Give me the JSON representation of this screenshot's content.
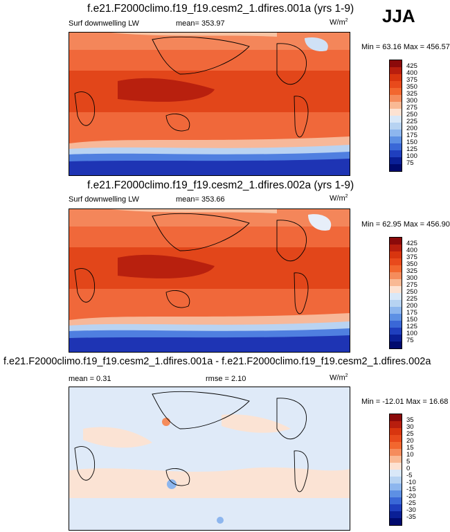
{
  "season": "JJA",
  "panels": [
    {
      "title": "f.e21.F2000climo.f19_f19.cesm2_1.dfires.001a (yrs 1-9)",
      "variable": "Surf downwelling LW",
      "mean_text": "mean= 353.97",
      "units": "W/m",
      "units_sup": "2",
      "minmax": "Min =  63.16 Max = 456.57",
      "levels": [
        "425",
        "400",
        "375",
        "350",
        "325",
        "300",
        "275",
        "250",
        "225",
        "200",
        "175",
        "150",
        "125",
        "100",
        "75"
      ],
      "colors": [
        "#8b0a0a",
        "#b81e0e",
        "#d8350f",
        "#e84a1c",
        "#f2672f",
        "#f58c5c",
        "#f9b994",
        "#fde2d2",
        "#d9e8f8",
        "#b7d3f2",
        "#8db6ee",
        "#5d90e4",
        "#3a68d7",
        "#1f3fbe",
        "#0a1f96",
        "#000a6e"
      ]
    },
    {
      "title": "f.e21.F2000climo.f19_f19.cesm2_1.dfires.002a (yrs 1-9)",
      "variable": "Surf downwelling LW",
      "mean_text": "mean= 353.66",
      "units": "W/m",
      "units_sup": "2",
      "minmax": "Min =  62.95 Max = 456.90",
      "levels": [
        "425",
        "400",
        "375",
        "350",
        "325",
        "300",
        "275",
        "250",
        "225",
        "200",
        "175",
        "150",
        "125",
        "100",
        "75"
      ],
      "colors": [
        "#8b0a0a",
        "#b81e0e",
        "#d8350f",
        "#e84a1c",
        "#f2672f",
        "#f58c5c",
        "#f9b994",
        "#fde2d2",
        "#d9e8f8",
        "#b7d3f2",
        "#8db6ee",
        "#5d90e4",
        "#3a68d7",
        "#1f3fbe",
        "#0a1f96",
        "#000a6e"
      ]
    },
    {
      "title": "f.e21.F2000climo.f19_f19.cesm2_1.dfires.001a - f.e21.F2000climo.f19_f19.cesm2_1.dfires.002a",
      "mean_text": "mean =   0.31",
      "rmse_text": "rmse =   2.10",
      "units": "W/m",
      "units_sup": "2",
      "minmax": "Min = -12.01 Max =  16.68",
      "levels": [
        "35",
        "30",
        "25",
        "20",
        "15",
        "10",
        "5",
        "0",
        "-5",
        "-10",
        "-15",
        "-20",
        "-25",
        "-30",
        "-35"
      ],
      "colors": [
        "#8b0a0a",
        "#b81e0e",
        "#d8350f",
        "#e84a1c",
        "#f2672f",
        "#f58c5c",
        "#f9b994",
        "#fde2d2",
        "#d9e8f8",
        "#b7d3f2",
        "#8db6ee",
        "#5d90e4",
        "#3a68d7",
        "#1f3fbe",
        "#0a1f96",
        "#000a6e"
      ]
    }
  ]
}
